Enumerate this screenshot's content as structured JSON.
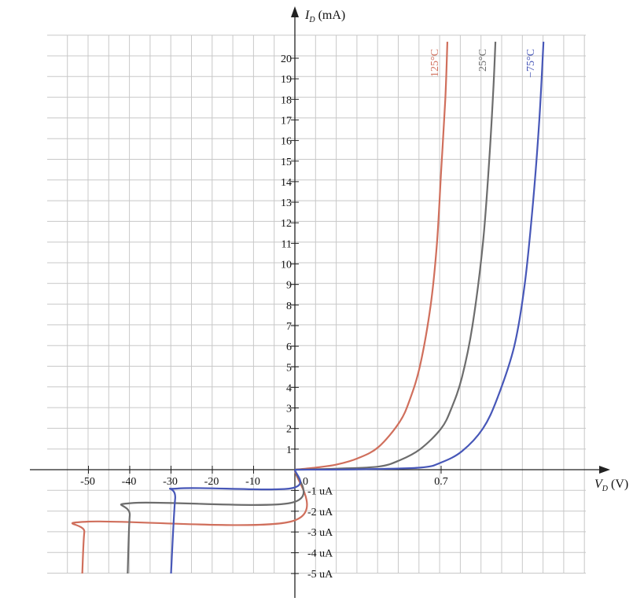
{
  "chart_data": {
    "type": "line",
    "y_axis_label": {
      "symbol": "I",
      "subscript": "D",
      "unit": "(mA)"
    },
    "x_axis_label": {
      "symbol": "V",
      "subscript": "D",
      "unit": "(V)"
    },
    "y_ticks_positive": [
      "1",
      "2",
      "3",
      "4",
      "5",
      "6",
      "7",
      "8",
      "9",
      "10",
      "11",
      "12",
      "13",
      "14",
      "15",
      "16",
      "17",
      "18",
      "19",
      "20"
    ],
    "y_ticks_negative": [
      "-1 uA",
      "-2 uA",
      "-3 uA",
      "-4 uA",
      "-5 uA"
    ],
    "x_ticks_negative": [
      "-50",
      "-40",
      "-30",
      "-20",
      "-10"
    ],
    "x_ticks_positive": [
      "0.7"
    ],
    "origin_label": "0",
    "ylim_forward_mA": [
      0,
      20
    ],
    "ylim_reverse_uA": [
      -5,
      0
    ],
    "grid": true,
    "colors": {
      "grid": "#c8c8c8",
      "axis": "#222222"
    },
    "series": [
      {
        "name": "125°C",
        "color": "#d06f5c",
        "forward": [
          [
            0,
            0
          ],
          [
            0.1,
            0.1
          ],
          [
            0.2,
            0.25
          ],
          [
            0.3,
            0.55
          ],
          [
            0.4,
            1.1
          ],
          [
            0.5,
            2.3
          ],
          [
            0.55,
            3.4
          ],
          [
            0.6,
            5.1
          ],
          [
            0.65,
            8.0
          ],
          [
            0.68,
            11.0
          ],
          [
            0.7,
            14.5
          ],
          [
            0.72,
            18.0
          ],
          [
            0.73,
            20.8
          ]
        ],
        "reverse": [
          [
            0,
            0
          ],
          [
            -1,
            -2.5
          ],
          [
            -50,
            -2.5
          ],
          [
            -51,
            -3.0
          ],
          [
            -51.5,
            -5.0
          ]
        ]
      },
      {
        "name": "25°C",
        "color": "#6d6d6d",
        "forward": [
          [
            0,
            0
          ],
          [
            0.2,
            0.05
          ],
          [
            0.4,
            0.15
          ],
          [
            0.5,
            0.45
          ],
          [
            0.6,
            1.0
          ],
          [
            0.7,
            2.0
          ],
          [
            0.75,
            3.0
          ],
          [
            0.8,
            4.5
          ],
          [
            0.85,
            7.0
          ],
          [
            0.9,
            11.0
          ],
          [
            0.93,
            15.0
          ],
          [
            0.95,
            18.5
          ],
          [
            0.96,
            20.8
          ]
        ],
        "reverse": [
          [
            0,
            0
          ],
          [
            -1,
            -1.6
          ],
          [
            -39,
            -1.6
          ],
          [
            -40,
            -2.2
          ],
          [
            -40.5,
            -5.0
          ]
        ]
      },
      {
        "name": "−75°C",
        "color": "#4757b8",
        "forward": [
          [
            0,
            0
          ],
          [
            0.3,
            0.02
          ],
          [
            0.6,
            0.1
          ],
          [
            0.7,
            0.35
          ],
          [
            0.8,
            0.9
          ],
          [
            0.9,
            2.0
          ],
          [
            0.97,
            3.5
          ],
          [
            1.05,
            6.0
          ],
          [
            1.1,
            9.0
          ],
          [
            1.14,
            13.0
          ],
          [
            1.17,
            17.0
          ],
          [
            1.19,
            20.8
          ]
        ],
        "reverse": [
          [
            0,
            0
          ],
          [
            -1,
            -0.9
          ],
          [
            -28,
            -0.9
          ],
          [
            -29,
            -1.4
          ],
          [
            -30,
            -5.0
          ]
        ]
      }
    ]
  }
}
